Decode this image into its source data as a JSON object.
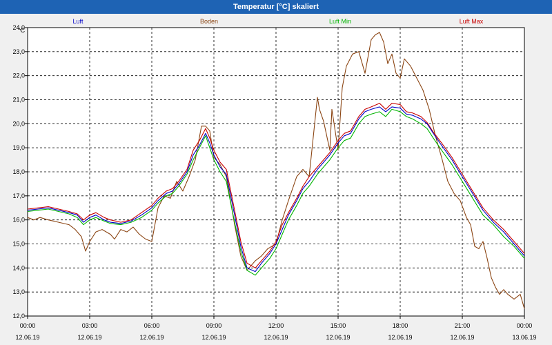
{
  "window": {
    "title": "Temperatur [°C] skaliert"
  },
  "chart_data": {
    "type": "line",
    "title": "Temperatur [°C] skaliert",
    "ylabel": "°C",
    "xlabel": "",
    "ylim": [
      12.0,
      24.0
    ],
    "xlim": [
      0,
      24
    ],
    "y_ticks": [
      "24,0",
      "23,0",
      "22,0",
      "21,0",
      "20,0",
      "19,0",
      "18,0",
      "17,0",
      "16,0",
      "15,0",
      "14,0",
      "13,0",
      "12,0"
    ],
    "y_tick_values": [
      24,
      23,
      22,
      21,
      20,
      19,
      18,
      17,
      16,
      15,
      14,
      13,
      12
    ],
    "x_ticks": [
      {
        "time": "00:00",
        "date": "12.06.19"
      },
      {
        "time": "03:00",
        "date": "12.06.19"
      },
      {
        "time": "06:00",
        "date": "12.06.19"
      },
      {
        "time": "09:00",
        "date": "12.06.19"
      },
      {
        "time": "12:00",
        "date": "12.06.19"
      },
      {
        "time": "15:00",
        "date": "12.06.19"
      },
      {
        "time": "18:00",
        "date": "12.06.19"
      },
      {
        "time": "21:00",
        "date": "12.06.19"
      },
      {
        "time": "00:00",
        "date": "13.06.19"
      }
    ],
    "x_tick_values": [
      0,
      3,
      6,
      9,
      12,
      15,
      18,
      21,
      24
    ],
    "grid": true,
    "series": [
      {
        "name": "Luft",
        "color": "#0000c8",
        "x": [
          0,
          0.5,
          1,
          1.5,
          2,
          2.4,
          2.7,
          3,
          3.3,
          3.7,
          4,
          4.5,
          5,
          5.5,
          6,
          6.3,
          6.7,
          7,
          7.3,
          7.7,
          8,
          8.3,
          8.6,
          8.8,
          9,
          9.3,
          9.6,
          10,
          10.3,
          10.6,
          11,
          11.3,
          11.7,
          12,
          12.3,
          12.6,
          13,
          13.3,
          13.6,
          14,
          14.3,
          14.6,
          15,
          15.3,
          15.6,
          16,
          16.3,
          16.6,
          17,
          17.3,
          17.6,
          18,
          18.3,
          18.6,
          19,
          19.3,
          19.6,
          20,
          20.5,
          21,
          21.5,
          22,
          22.5,
          23,
          23.5,
          24
        ],
        "y": [
          16.4,
          16.45,
          16.5,
          16.4,
          16.3,
          16.2,
          15.9,
          16.1,
          16.2,
          16.0,
          15.9,
          15.85,
          15.95,
          16.2,
          16.5,
          16.8,
          17.1,
          17.2,
          17.5,
          18.0,
          18.7,
          19.1,
          19.6,
          19.2,
          18.7,
          18.2,
          17.9,
          16.2,
          14.9,
          14.0,
          13.85,
          14.2,
          14.6,
          15.0,
          15.6,
          16.2,
          16.8,
          17.3,
          17.6,
          18.1,
          18.4,
          18.7,
          19.2,
          19.5,
          19.6,
          20.2,
          20.5,
          20.6,
          20.7,
          20.5,
          20.7,
          20.65,
          20.4,
          20.35,
          20.2,
          20.0,
          19.6,
          19.1,
          18.5,
          17.8,
          17.1,
          16.4,
          15.9,
          15.5,
          15.0,
          14.5
        ]
      },
      {
        "name": "Boden",
        "color": "#8b4513",
        "x": [
          0,
          0.3,
          0.6,
          1,
          1.5,
          2,
          2.3,
          2.6,
          2.8,
          3,
          3.3,
          3.6,
          4,
          4.2,
          4.5,
          4.8,
          5.1,
          5.4,
          5.7,
          6,
          6.3,
          6.6,
          6.9,
          7.2,
          7.5,
          7.8,
          8.1,
          8.4,
          8.6,
          8.8,
          9,
          9.3,
          9.6,
          10,
          10.3,
          10.6,
          11,
          11.3,
          11.6,
          12,
          12.3,
          12.6,
          13,
          13.3,
          13.6,
          14,
          14.1,
          14.3,
          14.6,
          14.7,
          15,
          15.2,
          15.4,
          15.7,
          16,
          16.3,
          16.6,
          16.8,
          17,
          17.2,
          17.4,
          17.6,
          17.8,
          18,
          18.2,
          18.5,
          18.8,
          19.1,
          19.4,
          19.7,
          20,
          20.3,
          20.6,
          20.9,
          21.2,
          21.4,
          21.6,
          21.8,
          22,
          22.2,
          22.4,
          22.6,
          22.8,
          23,
          23.2,
          23.5,
          23.8,
          24
        ],
        "y": [
          16.1,
          16.0,
          16.1,
          16.0,
          15.9,
          15.8,
          15.6,
          15.3,
          14.7,
          15.1,
          15.5,
          15.6,
          15.4,
          15.2,
          15.6,
          15.5,
          15.7,
          15.4,
          15.2,
          15.1,
          16.5,
          17.0,
          16.9,
          17.6,
          17.2,
          17.8,
          18.5,
          19.9,
          19.9,
          19.7,
          18.6,
          18.3,
          17.8,
          15.8,
          14.5,
          13.9,
          14.3,
          14.5,
          14.8,
          15.0,
          16.0,
          16.8,
          17.8,
          18.1,
          17.8,
          21.1,
          20.6,
          20.1,
          18.9,
          20.6,
          18.9,
          21.5,
          22.4,
          22.9,
          23.0,
          22.1,
          23.5,
          23.7,
          23.8,
          23.4,
          22.5,
          22.9,
          22.1,
          21.9,
          22.7,
          22.4,
          21.9,
          21.4,
          20.6,
          19.5,
          18.6,
          17.6,
          17.1,
          16.8,
          16.1,
          15.8,
          14.9,
          14.8,
          15.1,
          14.4,
          13.6,
          13.2,
          12.9,
          13.1,
          12.9,
          12.7,
          12.9,
          12.3
        ]
      },
      {
        "name": "Luft Min",
        "color": "#00b400",
        "x": [
          0,
          0.5,
          1,
          1.5,
          2,
          2.4,
          2.7,
          3,
          3.3,
          3.7,
          4,
          4.5,
          5,
          5.5,
          6,
          6.3,
          6.7,
          7,
          7.3,
          7.7,
          8,
          8.3,
          8.6,
          8.8,
          9,
          9.3,
          9.6,
          10,
          10.3,
          10.6,
          11,
          11.3,
          11.7,
          12,
          12.3,
          12.6,
          13,
          13.3,
          13.6,
          14,
          14.3,
          14.6,
          15,
          15.3,
          15.6,
          16,
          16.3,
          16.6,
          17,
          17.3,
          17.6,
          18,
          18.3,
          18.6,
          19,
          19.3,
          19.6,
          20,
          20.5,
          21,
          21.5,
          22,
          22.5,
          23,
          23.5,
          24
        ],
        "y": [
          16.35,
          16.4,
          16.45,
          16.35,
          16.25,
          16.1,
          15.8,
          16.0,
          16.1,
          15.95,
          15.85,
          15.8,
          15.9,
          16.1,
          16.4,
          16.7,
          17.0,
          17.1,
          17.4,
          17.9,
          18.5,
          19.0,
          19.5,
          19.0,
          18.5,
          18.0,
          17.6,
          15.9,
          14.7,
          13.9,
          13.7,
          14.0,
          14.4,
          14.8,
          15.4,
          16.0,
          16.6,
          17.1,
          17.4,
          17.9,
          18.2,
          18.5,
          19.0,
          19.3,
          19.4,
          20.0,
          20.3,
          20.4,
          20.5,
          20.3,
          20.6,
          20.5,
          20.3,
          20.2,
          20.0,
          19.8,
          19.4,
          18.9,
          18.3,
          17.6,
          16.9,
          16.2,
          15.8,
          15.3,
          14.9,
          14.4
        ]
      },
      {
        "name": "Luft Max",
        "color": "#c80000",
        "x": [
          0,
          0.5,
          1,
          1.5,
          2,
          2.4,
          2.7,
          3,
          3.3,
          3.7,
          4,
          4.5,
          5,
          5.5,
          6,
          6.3,
          6.7,
          7,
          7.3,
          7.7,
          8,
          8.3,
          8.6,
          8.8,
          9,
          9.3,
          9.6,
          10,
          10.3,
          10.6,
          11,
          11.3,
          11.7,
          12,
          12.3,
          12.6,
          13,
          13.3,
          13.6,
          14,
          14.3,
          14.6,
          15,
          15.3,
          15.6,
          16,
          16.3,
          16.6,
          17,
          17.3,
          17.6,
          18,
          18.3,
          18.6,
          19,
          19.3,
          19.6,
          20,
          20.5,
          21,
          21.5,
          22,
          22.5,
          23,
          23.5,
          24
        ],
        "y": [
          16.45,
          16.5,
          16.55,
          16.45,
          16.35,
          16.25,
          16.0,
          16.2,
          16.3,
          16.1,
          16.0,
          15.9,
          16.0,
          16.3,
          16.6,
          16.9,
          17.2,
          17.3,
          17.6,
          18.1,
          18.9,
          19.3,
          19.8,
          19.4,
          18.9,
          18.4,
          18.1,
          16.4,
          15.1,
          14.2,
          14.0,
          14.3,
          14.7,
          15.1,
          15.8,
          16.3,
          16.9,
          17.4,
          17.8,
          18.2,
          18.5,
          18.8,
          19.3,
          19.6,
          19.7,
          20.3,
          20.6,
          20.7,
          20.85,
          20.6,
          20.85,
          20.8,
          20.5,
          20.45,
          20.3,
          20.05,
          19.65,
          19.2,
          18.6,
          17.9,
          17.2,
          16.5,
          16.0,
          15.6,
          15.1,
          14.6
        ]
      }
    ]
  }
}
